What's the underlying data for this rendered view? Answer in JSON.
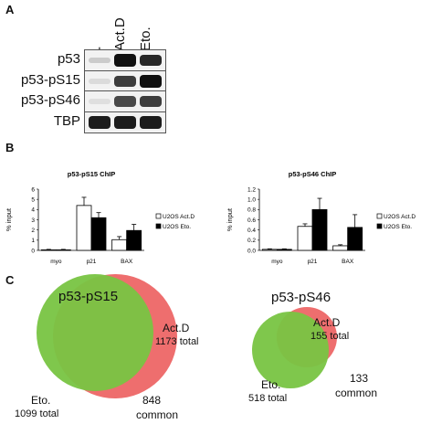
{
  "panels": {
    "a": "A",
    "b": "B",
    "c": "C"
  },
  "western_blot": {
    "lanes": [
      "-",
      "Act.D",
      "Eto."
    ],
    "rows": [
      {
        "label": "p53",
        "intensity": [
          0.12,
          0.95,
          0.85
        ]
      },
      {
        "label": "p53-pS15",
        "intensity": [
          0.05,
          0.75,
          0.95
        ]
      },
      {
        "label": "p53-pS46",
        "intensity": [
          0.03,
          0.7,
          0.75
        ]
      },
      {
        "label": "TBP",
        "intensity": [
          0.9,
          0.9,
          0.9
        ]
      }
    ]
  },
  "chart_data": [
    {
      "type": "bar",
      "title": "p53-pS15 ChIP",
      "ylabel": "% input",
      "categories": [
        "myo",
        "p21",
        "BAX"
      ],
      "ylim": [
        0,
        6
      ],
      "yticks": [
        "0",
        "1",
        "2",
        "3",
        "4",
        "5",
        "6"
      ],
      "series": [
        {
          "name": "U2OS Act.D",
          "values": [
            0.05,
            4.4,
            1.05
          ],
          "errors": [
            0.05,
            0.8,
            0.3
          ],
          "color": "#ffffff"
        },
        {
          "name": "U2OS Eto.",
          "values": [
            0.05,
            3.2,
            1.95
          ],
          "errors": [
            0.05,
            0.5,
            0.6
          ],
          "color": "#000000"
        }
      ]
    },
    {
      "type": "bar",
      "title": "p53-pS46 ChIP",
      "ylabel": "% input",
      "categories": [
        "myo",
        "p21",
        "BAX"
      ],
      "ylim": [
        0,
        1.2
      ],
      "yticks": [
        "0.0",
        "0.2",
        "0.4",
        "0.6",
        "0.8",
        "1.0",
        "1.2"
      ],
      "series": [
        {
          "name": "U2OS Act.D",
          "values": [
            0.02,
            0.47,
            0.09
          ],
          "errors": [
            0.01,
            0.05,
            0.02
          ],
          "color": "#ffffff"
        },
        {
          "name": "U2OS Eto.",
          "values": [
            0.02,
            0.8,
            0.45
          ],
          "errors": [
            0.01,
            0.22,
            0.25
          ],
          "color": "#000000"
        }
      ]
    }
  ],
  "venn": [
    {
      "title": "p53-pS15",
      "a_label": "Act.D",
      "a_total": "1173 total",
      "b_label": "Eto.",
      "b_total": "1099 total",
      "common_n": "848",
      "common_word": "common",
      "a_color": "#ee6e6e",
      "b_color": "#78c442"
    },
    {
      "title": "p53-pS46",
      "a_label": "Act.D",
      "a_total": "155 total",
      "b_label": "Eto.",
      "b_total": "518 total",
      "common_n": "133",
      "common_word": "common",
      "a_color": "#ee6e6e",
      "b_color": "#78c442"
    }
  ]
}
